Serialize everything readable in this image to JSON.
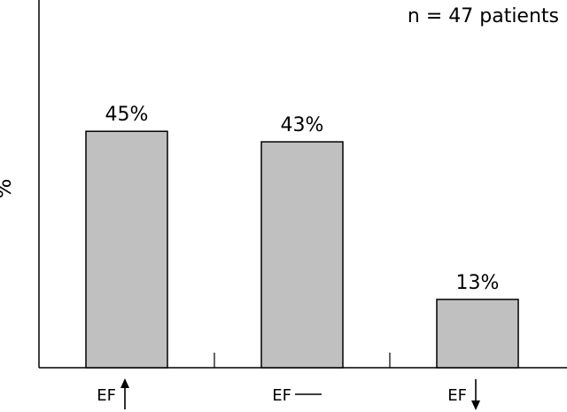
{
  "chart_data": {
    "type": "bar",
    "categories": [
      "EF",
      "EF",
      "EF"
    ],
    "category_symbols": [
      "arrow-up-icon",
      "dash-icon",
      "arrow-down-icon"
    ],
    "values": [
      45,
      43,
      13
    ],
    "value_labels": [
      "45%",
      "43%",
      "13%"
    ],
    "ylabel": "%",
    "annotation": "n = 47 patients",
    "ylim": [
      0,
      70
    ],
    "grid": false,
    "bar_color": "#c0c0c0"
  }
}
